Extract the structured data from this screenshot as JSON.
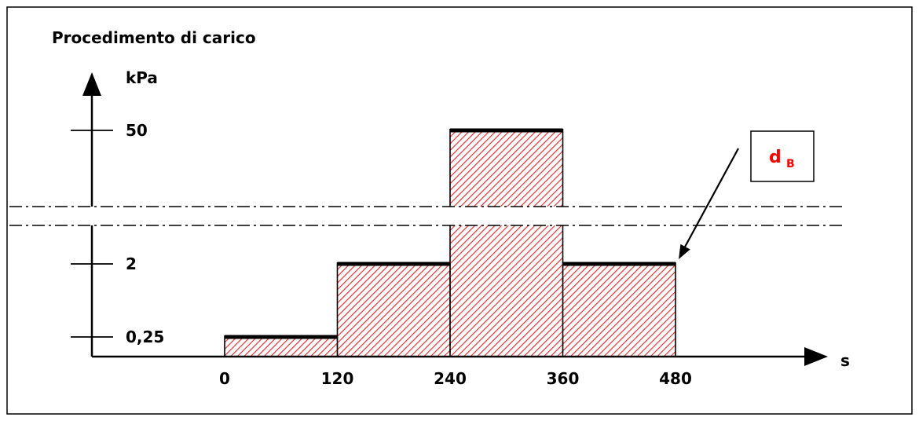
{
  "chart_data": {
    "type": "area",
    "title": "Procedimento di carico",
    "x_unit": "s",
    "y_unit": "kPa",
    "x_ticks": [
      "0",
      "120",
      "240",
      "360",
      "480"
    ],
    "y_ticks": [
      "0,25",
      "2",
      "50"
    ],
    "axis_break": true,
    "steps": [
      {
        "x_start": 0,
        "x_end": 120,
        "value": 0.25
      },
      {
        "x_start": 120,
        "x_end": 240,
        "value": 2
      },
      {
        "x_start": 240,
        "x_end": 360,
        "value": 50
      },
      {
        "x_start": 360,
        "x_end": 480,
        "value": 2
      }
    ],
    "annotation": {
      "label": "d",
      "subscript": "B",
      "points_to_x": 480,
      "points_to_value": 2,
      "color": "#ff0000"
    },
    "fill_color": "#ff0000",
    "grid": false,
    "legend": "none"
  }
}
